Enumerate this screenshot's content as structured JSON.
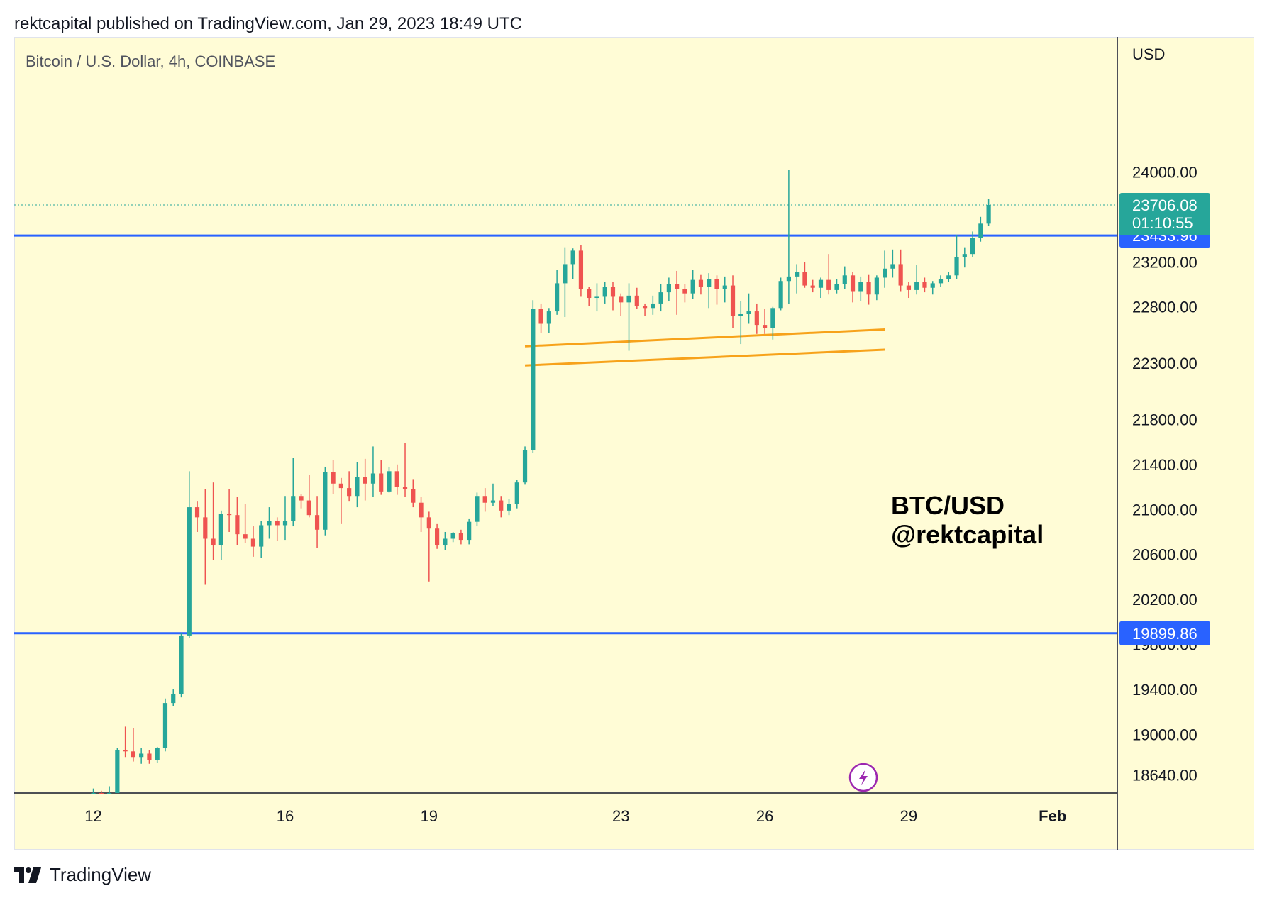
{
  "header": {
    "published_line": "rektcapital published on TradingView.com, Jan 29, 2023 18:49 UTC"
  },
  "footer": {
    "brand_label": "TradingView",
    "logo_icon": "tradingview-logo-icon"
  },
  "colors": {
    "background": "#fffcd6",
    "up": "#26a69a",
    "down": "#ef5350",
    "level_line": "#2962ff",
    "channel_line": "#f7a21b",
    "axis_text": "#131722",
    "grid_border": "#131722",
    "lightning": "#9c27b0"
  },
  "chart_data": {
    "type": "candlestick",
    "symbol_title": "Bitcoin / U.S. Dollar, 4h, COINBASE",
    "currency_label": "USD",
    "watermark": [
      "BTC/USD",
      "@rektcapital"
    ],
    "y_range": [
      18480,
      25200
    ],
    "x_range": [
      10.35,
      33.35
    ],
    "y_ticks": [
      "24000.00",
      "22800.00",
      "22300.00",
      "21800.00",
      "21400.00",
      "21000.00",
      "20600.00",
      "20200.00",
      "19400.00",
      "19000.00",
      "18640.00"
    ],
    "y_tick_values": [
      24000,
      22800,
      22300,
      21800,
      21400,
      21000,
      20600,
      20200,
      19400,
      19000,
      18640
    ],
    "hidden_ticks": [
      {
        "label": "23200.00",
        "value": 23200
      },
      {
        "label": "19800.00",
        "value": 19800
      }
    ],
    "x_ticks": [
      {
        "label": "12",
        "x": 12
      },
      {
        "label": "16",
        "x": 16
      },
      {
        "label": "19",
        "x": 19
      },
      {
        "label": "23",
        "x": 23
      },
      {
        "label": "26",
        "x": 26
      },
      {
        "label": "29",
        "x": 29
      },
      {
        "label": "Feb",
        "x": 32
      }
    ],
    "last_price": {
      "value": 23706.08,
      "label": "23706.08",
      "countdown": "01:10:55"
    },
    "horizontal_levels": [
      {
        "value": 23433.96,
        "label": "23433.96"
      },
      {
        "value": 19899.86,
        "label": "19899.86"
      }
    ],
    "channel_lines": [
      {
        "x1": 21.0,
        "y1": 22450,
        "x2": 28.5,
        "y2": 22600
      },
      {
        "x1": 21.0,
        "y1": 22280,
        "x2": 28.5,
        "y2": 22420
      }
    ],
    "candle_start_x": 12.0,
    "candle_step": 0.16667,
    "candles": [
      [
        18430,
        18520,
        18390,
        18470
      ],
      [
        18470,
        18500,
        18420,
        18450
      ],
      [
        18450,
        18540,
        18400,
        18480
      ],
      [
        18480,
        18880,
        18460,
        18860
      ],
      [
        18860,
        19070,
        18800,
        18850
      ],
      [
        18850,
        19060,
        18760,
        18800
      ],
      [
        18800,
        18880,
        18740,
        18830
      ],
      [
        18830,
        18860,
        18740,
        18770
      ],
      [
        18770,
        18890,
        18750,
        18880
      ],
      [
        18880,
        19320,
        18850,
        19280
      ],
      [
        19280,
        19400,
        19250,
        19360
      ],
      [
        19360,
        19900,
        19330,
        19880
      ],
      [
        19880,
        21340,
        19860,
        21020
      ],
      [
        21020,
        21070,
        20800,
        20930
      ],
      [
        20930,
        21180,
        20330,
        20740
      ],
      [
        20740,
        21240,
        20550,
        20680
      ],
      [
        20680,
        20990,
        20550,
        20960
      ],
      [
        20960,
        21180,
        20800,
        20950
      ],
      [
        20950,
        21110,
        20680,
        20780
      ],
      [
        20780,
        21050,
        20700,
        20740
      ],
      [
        20740,
        20850,
        20580,
        20670
      ],
      [
        20670,
        20900,
        20570,
        20860
      ],
      [
        20860,
        21020,
        20740,
        20900
      ],
      [
        20900,
        20930,
        20720,
        20860
      ],
      [
        20860,
        21120,
        20730,
        20900
      ],
      [
        20900,
        21460,
        20850,
        21120
      ],
      [
        21120,
        21140,
        21010,
        21080
      ],
      [
        21080,
        21310,
        20930,
        20950
      ],
      [
        20950,
        21120,
        20660,
        20820
      ],
      [
        20820,
        21380,
        20770,
        21330
      ],
      [
        21330,
        21440,
        21140,
        21230
      ],
      [
        21230,
        21280,
        20870,
        21190
      ],
      [
        21190,
        21340,
        21070,
        21120
      ],
      [
        21120,
        21420,
        21020,
        21290
      ],
      [
        21290,
        21450,
        21080,
        21230
      ],
      [
        21230,
        21560,
        21110,
        21320
      ],
      [
        21320,
        21440,
        21130,
        21160
      ],
      [
        21160,
        21380,
        21150,
        21340
      ],
      [
        21340,
        21400,
        21130,
        21200
      ],
      [
        21200,
        21590,
        21110,
        21180
      ],
      [
        21180,
        21270,
        21020,
        21060
      ],
      [
        21060,
        21110,
        20800,
        20930
      ],
      [
        20930,
        20980,
        20360,
        20830
      ],
      [
        20830,
        20870,
        20650,
        20680
      ],
      [
        20680,
        20800,
        20640,
        20740
      ],
      [
        20740,
        20800,
        20710,
        20790
      ],
      [
        20790,
        20820,
        20690,
        20730
      ],
      [
        20730,
        20920,
        20690,
        20890
      ],
      [
        20890,
        21150,
        20850,
        21120
      ],
      [
        21120,
        21190,
        20980,
        21060
      ],
      [
        21060,
        21230,
        21030,
        21080
      ],
      [
        21080,
        21120,
        20930,
        20990
      ],
      [
        20990,
        21090,
        20950,
        21050
      ],
      [
        21050,
        21260,
        21010,
        21240
      ],
      [
        21240,
        21560,
        21220,
        21530
      ],
      [
        21530,
        22860,
        21500,
        22780
      ],
      [
        22780,
        22830,
        22570,
        22650
      ],
      [
        22650,
        22790,
        22570,
        22760
      ],
      [
        22760,
        23130,
        22730,
        23010
      ],
      [
        23010,
        23330,
        22710,
        23180
      ],
      [
        23180,
        23320,
        23050,
        23300
      ],
      [
        23300,
        23350,
        22890,
        22960
      ],
      [
        22960,
        22980,
        22810,
        22880
      ],
      [
        22880,
        23010,
        22760,
        22890
      ],
      [
        22890,
        23020,
        22830,
        22980
      ],
      [
        22980,
        23020,
        22770,
        22890
      ],
      [
        22890,
        22920,
        22720,
        22840
      ],
      [
        22840,
        23010,
        22410,
        22900
      ],
      [
        22900,
        22970,
        22780,
        22810
      ],
      [
        22810,
        22830,
        22720,
        22790
      ],
      [
        22790,
        22900,
        22730,
        22830
      ],
      [
        22830,
        23000,
        22760,
        22930
      ],
      [
        22930,
        23060,
        22850,
        23000
      ],
      [
        23000,
        23120,
        22730,
        22960
      ],
      [
        22960,
        23000,
        22840,
        22920
      ],
      [
        22920,
        23130,
        22870,
        23040
      ],
      [
        23040,
        23090,
        22910,
        22980
      ],
      [
        22980,
        23100,
        22790,
        23050
      ],
      [
        23050,
        23080,
        22820,
        22960
      ],
      [
        22960,
        23070,
        22840,
        22990
      ],
      [
        22990,
        23080,
        22610,
        22720
      ],
      [
        22720,
        22850,
        22470,
        22740
      ],
      [
        22740,
        22920,
        22650,
        22760
      ],
      [
        22760,
        22830,
        22560,
        22640
      ],
      [
        22640,
        22780,
        22560,
        22610
      ],
      [
        22610,
        22800,
        22510,
        22790
      ],
      [
        22790,
        23060,
        22770,
        23030
      ],
      [
        23030,
        24020,
        22830,
        23070
      ],
      [
        23070,
        23180,
        22920,
        23110
      ],
      [
        23110,
        23200,
        22970,
        22990
      ],
      [
        22990,
        23040,
        22930,
        22970
      ],
      [
        22970,
        23060,
        22880,
        23040
      ],
      [
        23040,
        23270,
        22910,
        22950
      ],
      [
        22950,
        23050,
        22920,
        23000
      ],
      [
        23000,
        23160,
        22960,
        23080
      ],
      [
        23080,
        23110,
        22840,
        22940
      ],
      [
        22940,
        23070,
        22850,
        23020
      ],
      [
        23020,
        23090,
        22820,
        22910
      ],
      [
        22910,
        23080,
        22860,
        23060
      ],
      [
        23060,
        23300,
        22970,
        23140
      ],
      [
        23140,
        23310,
        23060,
        23180
      ],
      [
        23180,
        23310,
        22940,
        22990
      ],
      [
        22990,
        23020,
        22880,
        22950
      ],
      [
        22950,
        23170,
        22910,
        23020
      ],
      [
        23020,
        23060,
        22930,
        22970
      ],
      [
        22970,
        23030,
        22910,
        23010
      ],
      [
        23010,
        23080,
        22980,
        23050
      ],
      [
        23050,
        23110,
        23020,
        23080
      ],
      [
        23080,
        23440,
        23050,
        23240
      ],
      [
        23240,
        23330,
        23150,
        23270
      ],
      [
        23270,
        23470,
        23240,
        23410
      ],
      [
        23410,
        23600,
        23380,
        23540
      ],
      [
        23540,
        23760,
        23520,
        23706
      ]
    ]
  }
}
